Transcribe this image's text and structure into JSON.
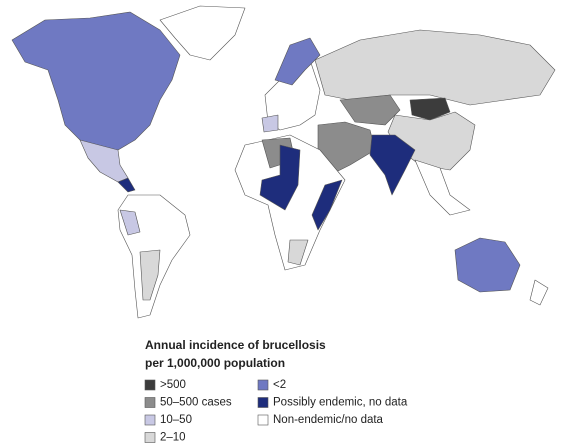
{
  "legend": {
    "title": [
      "Annual incidence of brucellosis",
      "per 1,000,000 population"
    ],
    "items": [
      {
        "label": ">500",
        "color": "#3c3c3c"
      },
      {
        "label": "50–500 cases",
        "color": "#8c8c8c"
      },
      {
        "label": "10–50",
        "color": "#c8c8e4"
      },
      {
        "label": "2–10",
        "color": "#d8d8d8"
      },
      {
        "label": "<2",
        "color": "#6f79c2"
      },
      {
        "label": "Possibly endemic, no data",
        "color": "#1e2d7c"
      },
      {
        "label": "Non-endemic/no data",
        "color": "#ffffff"
      }
    ]
  }
}
